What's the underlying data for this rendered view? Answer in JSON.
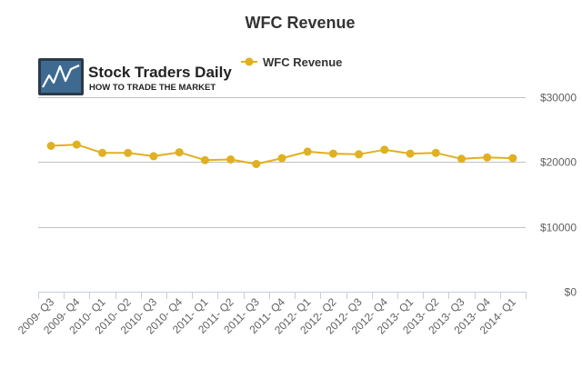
{
  "logo": {
    "name": "Stock Traders Daily",
    "tagline": "HOW TO TRADE THE MARKET"
  },
  "colors": {
    "series": "#e0b020",
    "grid": "#c0c0c0",
    "axis": "#c0d0e0"
  },
  "chart_data": {
    "type": "line",
    "title": "WFC Revenue",
    "xlabel": "",
    "ylabel": "",
    "categories": [
      "2009- Q3",
      "2009- Q4",
      "2010- Q1",
      "2010- Q2",
      "2010- Q3",
      "2010- Q4",
      "2011- Q1",
      "2011- Q2",
      "2011- Q3",
      "2011- Q4",
      "2012- Q1",
      "2012- Q2",
      "2012- Q3",
      "2012- Q4",
      "2013- Q1",
      "2013- Q2",
      "2013- Q3",
      "2013- Q4",
      "2014- Q1"
    ],
    "series": [
      {
        "name": "WFC Revenue",
        "values": [
          22500,
          22700,
          21400,
          21400,
          20900,
          21500,
          20300,
          20400,
          19700,
          20600,
          21600,
          21300,
          21200,
          21900,
          21300,
          21400,
          20500,
          20700,
          20600
        ]
      }
    ],
    "ylim": [
      0,
      30000
    ],
    "yticks": [
      {
        "value": 0,
        "label": "$0"
      },
      {
        "value": 10000,
        "label": "$10000"
      },
      {
        "value": 20000,
        "label": "$20000"
      },
      {
        "value": 30000,
        "label": "$30000"
      }
    ],
    "grid": true,
    "legend": "top-center"
  }
}
